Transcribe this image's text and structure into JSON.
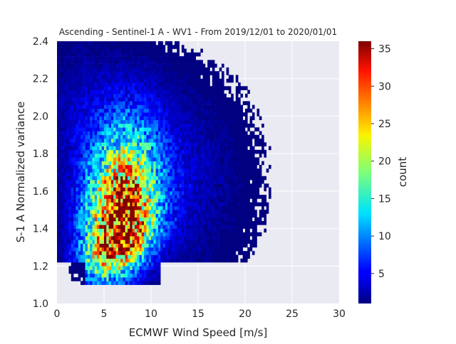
{
  "chart_data": {
    "type": "heatmap",
    "title": "Ascending - Sentinel-1 A - WV1 - From 2019/12/01 to 2020/01/01",
    "xlabel": "ECMWF Wind Speed [m/s]",
    "ylabel": "S-1 A Normalized variance",
    "xlim": [
      0,
      30
    ],
    "ylim": [
      1.0,
      2.4
    ],
    "xticks": [
      0,
      5,
      10,
      15,
      20,
      25,
      30
    ],
    "yticks": [
      1.0,
      1.2,
      1.4,
      1.6,
      1.8,
      2.0,
      2.2,
      2.4
    ],
    "xtick_labels": [
      "0",
      "5",
      "10",
      "15",
      "20",
      "25",
      "30"
    ],
    "ytick_labels": [
      "1.0",
      "1.2",
      "1.4",
      "1.6",
      "1.8",
      "2.0",
      "2.2",
      "2.4"
    ],
    "grid": true,
    "colormap": "jet",
    "colorbar": {
      "label": "count",
      "range": [
        1,
        36
      ],
      "ticks": [
        5,
        10,
        15,
        20,
        25,
        30,
        35
      ],
      "tick_labels": [
        "5",
        "10",
        "15",
        "20",
        "25",
        "30",
        "35"
      ]
    },
    "bin_size": {
      "x": 0.25,
      "y": 0.02
    },
    "density_model": {
      "peak_count": 34,
      "peak": {
        "x": 6.7,
        "y": 1.36
      },
      "x_spread": 2.6,
      "y_spread": 0.16,
      "tilt": 0.025
    },
    "background_color": "#eaeaf2",
    "grid_color": "#ffffff"
  }
}
